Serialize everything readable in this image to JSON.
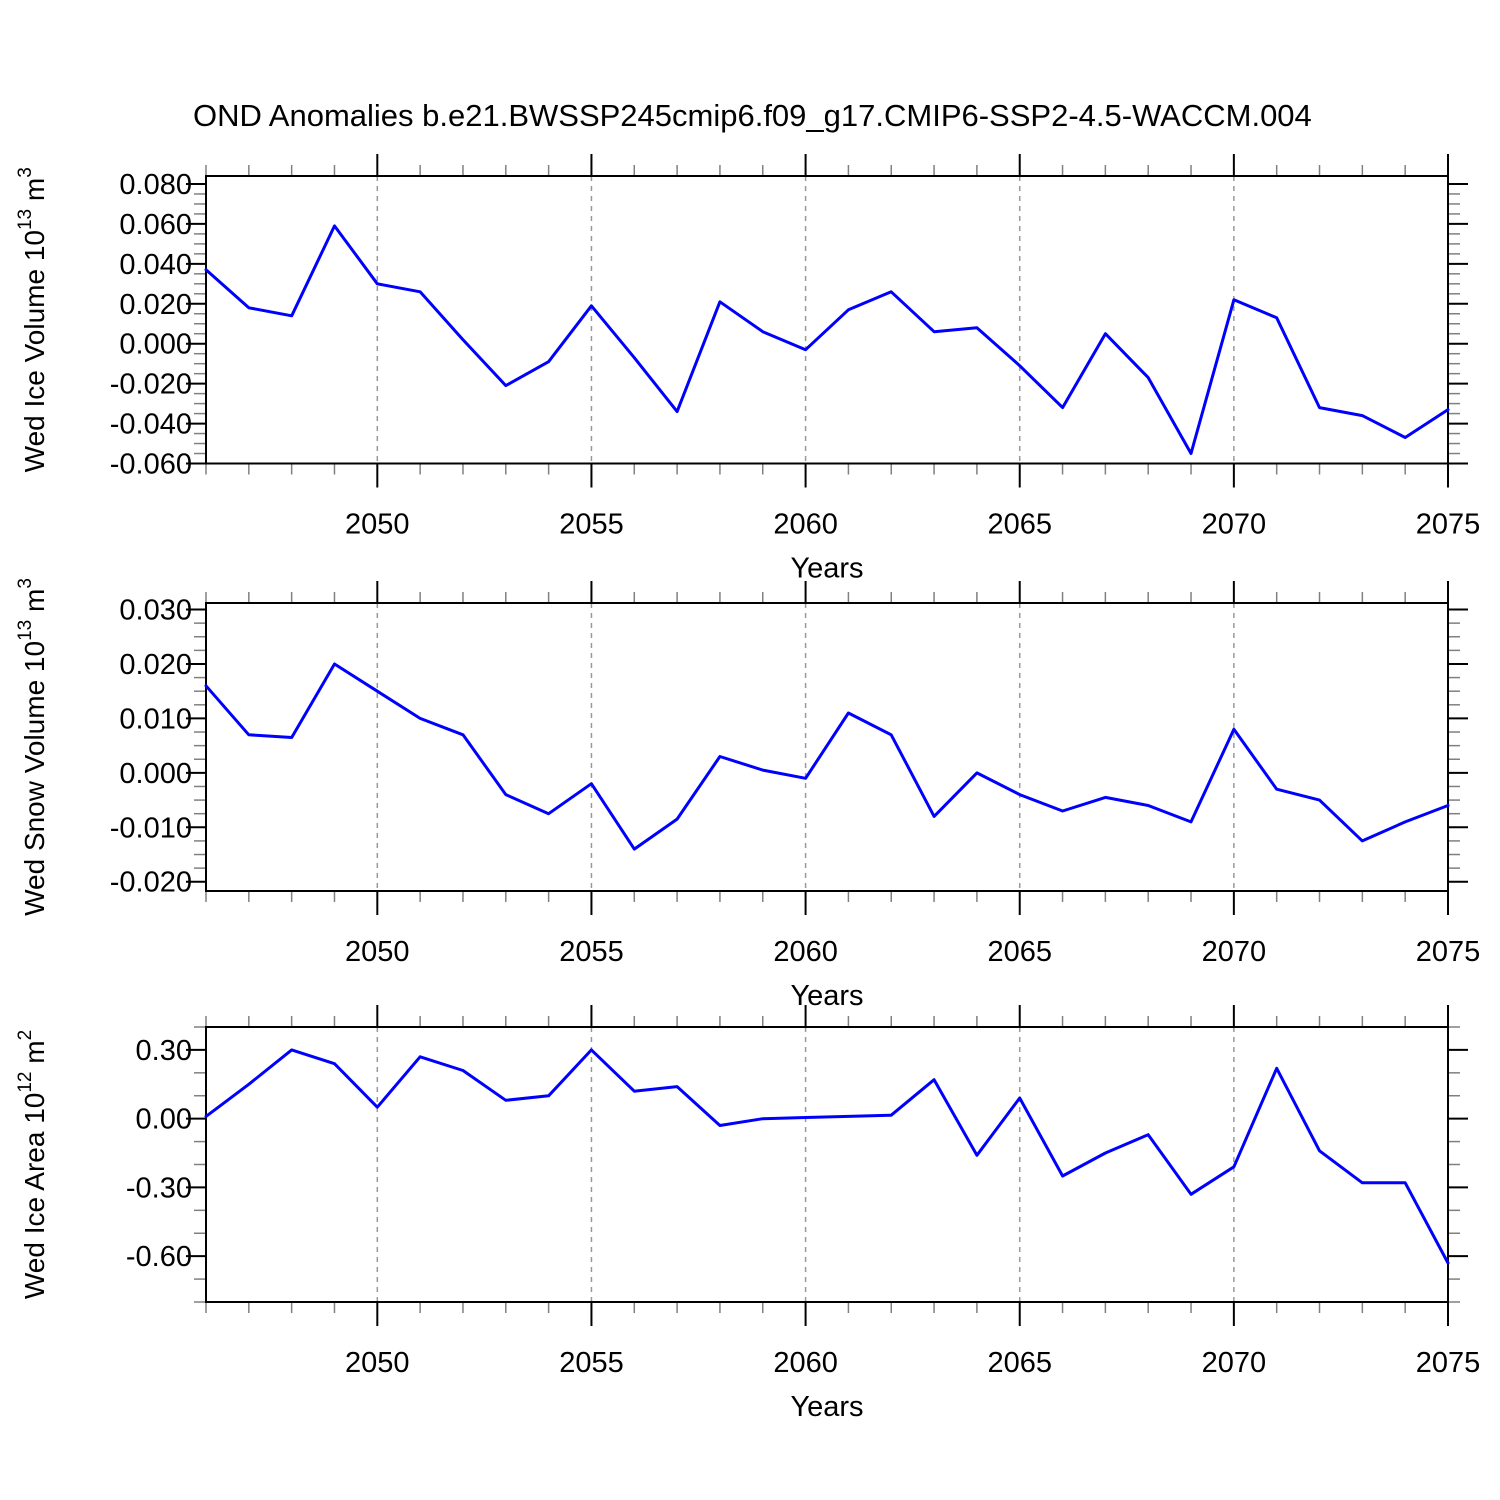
{
  "title": "OND Anomalies b.e21.BWSSP245cmip6.f09_g17.CMIP6-SSP2-4.5-WACCM.004",
  "colors": {
    "line": "#0000ff",
    "axis": "#000000",
    "minor_tick": "#808080",
    "grid": "#999999",
    "background": "#ffffff",
    "text": "#000000"
  },
  "x_axis": {
    "label": "Years",
    "min": 2046,
    "max": 2075,
    "years": [
      2046,
      2047,
      2048,
      2049,
      2050,
      2051,
      2052,
      2053,
      2054,
      2055,
      2056,
      2057,
      2058,
      2059,
      2060,
      2061,
      2062,
      2063,
      2064,
      2065,
      2066,
      2067,
      2068,
      2069,
      2070,
      2071,
      2072,
      2073,
      2074,
      2075
    ],
    "major_ticks": [
      2050,
      2055,
      2060,
      2065,
      2070,
      2075
    ],
    "major_tick_labels": [
      "2050",
      "2055",
      "2060",
      "2065",
      "2070",
      "2075"
    ],
    "grid_years": [
      2050,
      2055,
      2060,
      2065,
      2070
    ]
  },
  "chart_data": [
    {
      "type": "line",
      "name": "wed-ice-volume",
      "ylabel": "Wed Ice Volume 10^13 m^3",
      "ylabel_parts": [
        {
          "t": "Wed Ice Volume 10"
        },
        {
          "t": "13",
          "sup": true
        },
        {
          "t": " m"
        },
        {
          "t": "3",
          "sup": true
        }
      ],
      "ylim": [
        -0.06,
        0.084
      ],
      "ytick_values": [
        0.08,
        0.06,
        0.04,
        0.02,
        0,
        -0.02,
        -0.04,
        -0.06
      ],
      "ytick_labels": [
        "0.080",
        "0.060",
        "0.040",
        "0.020",
        "0.000",
        "-0.020",
        "-0.040",
        "-0.060"
      ],
      "ymajor_step": 0.02,
      "yminor_step": 0.005,
      "values": [
        0.037,
        0.018,
        0.014,
        0.059,
        0.03,
        0.026,
        0.002,
        -0.021,
        -0.009,
        0.019,
        -0.007,
        -0.034,
        0.021,
        0.006,
        -0.003,
        0.017,
        0.026,
        0.006,
        0.008,
        -0.011,
        -0.032,
        0.005,
        -0.017,
        -0.055,
        0.022,
        0.013,
        -0.032,
        -0.036,
        -0.047,
        -0.033
      ]
    },
    {
      "type": "line",
      "name": "wed-snow-volume",
      "ylabel": "Wed Snow Volume 10^13 m^3",
      "ylabel_parts": [
        {
          "t": "Wed Snow Volume 10"
        },
        {
          "t": "13",
          "sup": true
        },
        {
          "t": " m"
        },
        {
          "t": "3",
          "sup": true
        }
      ],
      "ylim": [
        -0.0217,
        0.0312
      ],
      "ytick_values": [
        0.03,
        0.02,
        0.01,
        0,
        -0.01,
        -0.02
      ],
      "ytick_labels": [
        "0.030",
        "0.020",
        "0.010",
        "0.000",
        "-0.010",
        "-0.020"
      ],
      "ymajor_step": 0.01,
      "yminor_step": 0.0025,
      "values": [
        0.016,
        0.007,
        0.0065,
        0.02,
        0.015,
        0.01,
        0.007,
        -0.004,
        -0.0075,
        -0.002,
        -0.014,
        -0.0085,
        0.003,
        0.0005,
        -0.001,
        0.011,
        0.007,
        -0.008,
        0.0,
        -0.004,
        -0.007,
        -0.0045,
        -0.006,
        -0.009,
        0.008,
        -0.003,
        -0.005,
        -0.0125,
        -0.009,
        -0.006
      ]
    },
    {
      "type": "line",
      "name": "wed-ice-area",
      "ylabel": "Wed Ice Area 10^12 m^2",
      "ylabel_parts": [
        {
          "t": "Wed Ice Area 10"
        },
        {
          "t": "12",
          "sup": true
        },
        {
          "t": " m"
        },
        {
          "t": "2",
          "sup": true
        }
      ],
      "ylim": [
        -0.8,
        0.4
      ],
      "ytick_values": [
        0.3,
        0.0,
        -0.3,
        -0.6
      ],
      "ytick_labels": [
        "0.30",
        "0.00",
        "-0.30",
        "-0.60"
      ],
      "ymajor_step": 0.3,
      "yminor_step": 0.1,
      "values": [
        0.01,
        0.15,
        0.3,
        0.24,
        0.05,
        0.27,
        0.21,
        0.08,
        0.1,
        0.3,
        0.12,
        0.14,
        -0.03,
        0.0,
        0.005,
        0.01,
        0.015,
        0.17,
        -0.16,
        0.09,
        -0.25,
        -0.15,
        -0.07,
        -0.33,
        -0.21,
        0.22,
        -0.14,
        -0.28,
        -0.28,
        -0.63
      ]
    }
  ]
}
